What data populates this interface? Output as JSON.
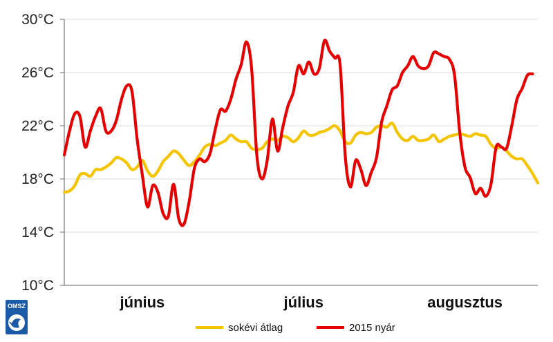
{
  "colors": {
    "avg": "#f5c400",
    "summer": "#e60000",
    "grid": "#d9d9d9",
    "axis": "#808080",
    "logo": "#1b5aa6"
  },
  "logo": {
    "text": "OMSZ"
  },
  "chart_data": {
    "type": "line",
    "title": "",
    "xlabel": "",
    "ylabel": "",
    "ylim": [
      10,
      30
    ],
    "yticks": [
      10,
      14,
      18,
      22,
      26,
      30
    ],
    "ytick_labels": [
      "10°C",
      "14°C",
      "18°C",
      "22°C",
      "26°C",
      "30°C"
    ],
    "x_range": [
      0,
      91
    ],
    "month_labels": [
      {
        "label": "június",
        "x": 15
      },
      {
        "label": "július",
        "x": 46
      },
      {
        "label": "augusztus",
        "x": 77
      }
    ],
    "grid": true,
    "legend_position": "bottom",
    "series": [
      {
        "name": "sokévi átlag",
        "color": "#f5c400",
        "points": [
          [
            0,
            17.0
          ],
          [
            1,
            17.1
          ],
          [
            2,
            17.5
          ],
          [
            3,
            18.3
          ],
          [
            4,
            18.4
          ],
          [
            5,
            18.2
          ],
          [
            6,
            18.7
          ],
          [
            7,
            18.7
          ],
          [
            8,
            18.9
          ],
          [
            9,
            19.2
          ],
          [
            10,
            19.6
          ],
          [
            11,
            19.5
          ],
          [
            12,
            19.2
          ],
          [
            13,
            18.7
          ],
          [
            14,
            18.9
          ],
          [
            15,
            19.4
          ],
          [
            16,
            18.6
          ],
          [
            17,
            18.2
          ],
          [
            18,
            18.6
          ],
          [
            19,
            19.3
          ],
          [
            20,
            19.7
          ],
          [
            21,
            20.1
          ],
          [
            22,
            19.9
          ],
          [
            23,
            19.4
          ],
          [
            24,
            19.0
          ],
          [
            25,
            19.3
          ],
          [
            26,
            19.8
          ],
          [
            27,
            20.4
          ],
          [
            28,
            20.6
          ],
          [
            29,
            20.5
          ],
          [
            30,
            20.7
          ],
          [
            31,
            20.9
          ],
          [
            32,
            21.3
          ],
          [
            33,
            21.0
          ],
          [
            34,
            20.8
          ],
          [
            35,
            20.8
          ],
          [
            36,
            20.3
          ],
          [
            37,
            20.2
          ],
          [
            38,
            20.3
          ],
          [
            39,
            20.8
          ],
          [
            40,
            21.0
          ],
          [
            41,
            20.9
          ],
          [
            42,
            21.2
          ],
          [
            43,
            21.1
          ],
          [
            44,
            20.8
          ],
          [
            45,
            21.1
          ],
          [
            46,
            21.6
          ],
          [
            47,
            21.3
          ],
          [
            48,
            21.3
          ],
          [
            49,
            21.5
          ],
          [
            50,
            21.6
          ],
          [
            51,
            21.8
          ],
          [
            52,
            22.0
          ],
          [
            53,
            21.6
          ],
          [
            54,
            20.8
          ],
          [
            55,
            20.7
          ],
          [
            56,
            21.3
          ],
          [
            57,
            21.5
          ],
          [
            58,
            21.4
          ],
          [
            59,
            21.5
          ],
          [
            60,
            21.9
          ],
          [
            61,
            22.0
          ],
          [
            62,
            21.9
          ],
          [
            63,
            22.2
          ],
          [
            64,
            21.5
          ],
          [
            65,
            21.0
          ],
          [
            66,
            20.9
          ],
          [
            67,
            21.2
          ],
          [
            68,
            20.9
          ],
          [
            69,
            20.9
          ],
          [
            70,
            21.0
          ],
          [
            71,
            21.3
          ],
          [
            72,
            20.8
          ],
          [
            73,
            21.0
          ],
          [
            74,
            21.2
          ],
          [
            75,
            21.3
          ],
          [
            76,
            21.4
          ],
          [
            77,
            21.3
          ],
          [
            78,
            21.2
          ],
          [
            79,
            21.4
          ],
          [
            80,
            21.3
          ],
          [
            81,
            21.2
          ],
          [
            82,
            20.6
          ],
          [
            83,
            20.3
          ],
          [
            84,
            20.4
          ],
          [
            85,
            20.1
          ],
          [
            86,
            19.7
          ],
          [
            87,
            19.5
          ],
          [
            88,
            19.5
          ],
          [
            89,
            19.0
          ],
          [
            90,
            18.4
          ],
          [
            91,
            17.7
          ]
        ]
      },
      {
        "name": "2015 nyár",
        "color": "#e60000",
        "points": [
          [
            0,
            19.8
          ],
          [
            1,
            21.6
          ],
          [
            2,
            22.9
          ],
          [
            3,
            22.7
          ],
          [
            4,
            20.4
          ],
          [
            5,
            21.6
          ],
          [
            6,
            22.7
          ],
          [
            7,
            23.3
          ],
          [
            8,
            21.6
          ],
          [
            9,
            21.6
          ],
          [
            10,
            22.4
          ],
          [
            11,
            24.0
          ],
          [
            12,
            25.0
          ],
          [
            13,
            24.6
          ],
          [
            14,
            21.0
          ],
          [
            15,
            18.3
          ],
          [
            16,
            15.9
          ],
          [
            17,
            17.5
          ],
          [
            18,
            17.0
          ],
          [
            19,
            15.4
          ],
          [
            20,
            15.2
          ],
          [
            21,
            17.6
          ],
          [
            22,
            15.0
          ],
          [
            23,
            14.6
          ],
          [
            24,
            16.3
          ],
          [
            25,
            18.8
          ],
          [
            26,
            19.5
          ],
          [
            27,
            19.3
          ],
          [
            28,
            19.9
          ],
          [
            29,
            21.7
          ],
          [
            30,
            23.2
          ],
          [
            31,
            23.1
          ],
          [
            32,
            24.0
          ],
          [
            33,
            25.5
          ],
          [
            34,
            26.6
          ],
          [
            35,
            28.3
          ],
          [
            36,
            26.3
          ],
          [
            37,
            19.8
          ],
          [
            38,
            18.0
          ],
          [
            39,
            19.4
          ],
          [
            40,
            22.5
          ],
          [
            41,
            20.1
          ],
          [
            42,
            21.9
          ],
          [
            43,
            23.5
          ],
          [
            44,
            24.5
          ],
          [
            45,
            26.5
          ],
          [
            46,
            25.9
          ],
          [
            47,
            26.8
          ],
          [
            48,
            25.9
          ],
          [
            49,
            26.3
          ],
          [
            50,
            28.4
          ],
          [
            51,
            27.6
          ],
          [
            52,
            27.1
          ],
          [
            53,
            26.6
          ],
          [
            54,
            19.7
          ],
          [
            55,
            17.4
          ],
          [
            56,
            19.4
          ],
          [
            57,
            18.7
          ],
          [
            58,
            17.5
          ],
          [
            59,
            18.5
          ],
          [
            60,
            19.6
          ],
          [
            61,
            22.3
          ],
          [
            62,
            23.5
          ],
          [
            63,
            24.7
          ],
          [
            64,
            25.0
          ],
          [
            65,
            26.0
          ],
          [
            66,
            26.5
          ],
          [
            67,
            27.2
          ],
          [
            68,
            26.5
          ],
          [
            69,
            26.3
          ],
          [
            70,
            26.5
          ],
          [
            71,
            27.5
          ],
          [
            72,
            27.4
          ],
          [
            73,
            27.2
          ],
          [
            74,
            27.0
          ],
          [
            75,
            25.8
          ],
          [
            76,
            21.5
          ],
          [
            77,
            18.9
          ],
          [
            78,
            18.1
          ],
          [
            79,
            16.9
          ],
          [
            80,
            17.3
          ],
          [
            81,
            16.7
          ],
          [
            82,
            17.6
          ],
          [
            83,
            20.4
          ],
          [
            84,
            20.4
          ],
          [
            85,
            20.3
          ],
          [
            86,
            22.0
          ],
          [
            87,
            24.0
          ],
          [
            88,
            24.8
          ],
          [
            89,
            25.8
          ],
          [
            90,
            25.9
          ]
        ]
      }
    ]
  }
}
